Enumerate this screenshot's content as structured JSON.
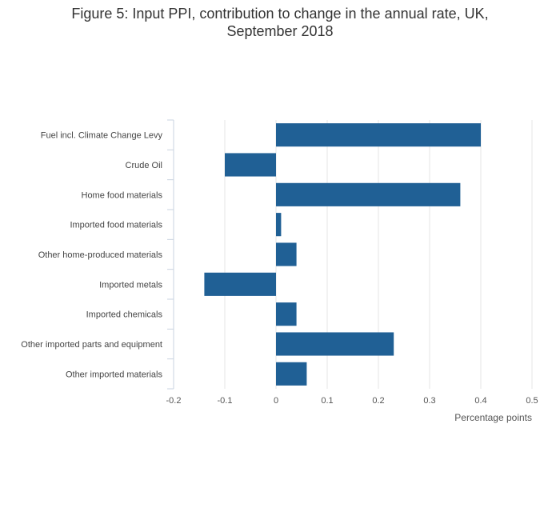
{
  "title_lines": [
    "Figure 5: Input PPI, contribution to change in the annual rate, UK,",
    "September 2018"
  ],
  "chart_data": {
    "type": "bar",
    "orientation": "horizontal",
    "title": "Figure 5: Input PPI, contribution to change in the annual rate, UK, September 2018",
    "xlabel": "Percentage points",
    "ylabel": "",
    "xlim": [
      -0.2,
      0.5
    ],
    "xticks": [
      -0.2,
      -0.1,
      0,
      0.1,
      0.2,
      0.3,
      0.4,
      0.5
    ],
    "xtick_labels": [
      "-0.2",
      "-0.1",
      "0",
      "0.1",
      "0.2",
      "0.3",
      "0.4",
      "0.5"
    ],
    "grid": true,
    "categories": [
      "Fuel incl. Climate Change Levy",
      "Crude Oil",
      "Home food materials",
      "Imported food materials",
      "Other home-produced materials",
      "Imported metals",
      "Imported chemicals",
      "Other imported parts and equipment",
      "Other imported materials"
    ],
    "values": [
      0.4,
      -0.1,
      0.36,
      0.01,
      0.04,
      -0.14,
      0.04,
      0.23,
      0.06
    ],
    "color": "#206095"
  }
}
